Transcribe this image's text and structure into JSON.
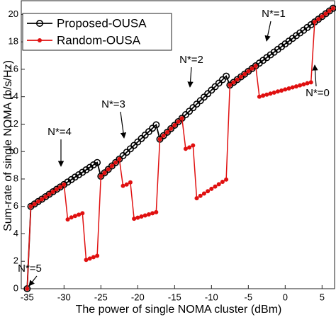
{
  "chart_data": {
    "type": "line",
    "x_label": "The power of single NOMA cluster (dBm)",
    "y_label": "Sum-rate of single NOMA (b/s/Hz)",
    "x": [
      -35,
      -34.5,
      -34,
      -33.5,
      -33,
      -32.5,
      -32,
      -31.5,
      -31,
      -30.5,
      -30,
      -29.5,
      -29,
      -28.5,
      -28,
      -27.5,
      -27,
      -26.5,
      -26,
      -25.5,
      -25,
      -24.5,
      -24,
      -23.5,
      -23,
      -22.5,
      -22,
      -21.5,
      -21,
      -20.5,
      -20,
      -19.5,
      -19,
      -18.5,
      -18,
      -17.5,
      -17,
      -16.5,
      -16,
      -15.5,
      -15,
      -14.5,
      -14,
      -13.5,
      -13,
      -12.5,
      -12,
      -11.5,
      -11,
      -10.5,
      -10,
      -9.5,
      -9,
      -8.5,
      -8,
      -7.5,
      -7,
      -6.5,
      -6,
      -5.5,
      -5,
      -4.5,
      -4,
      -3.5,
      -3,
      -2.5,
      -2,
      -1.5,
      -1,
      -0.5,
      0,
      0.5,
      1,
      1.5,
      2,
      2.5,
      3,
      3.5,
      4,
      4.5,
      5,
      5.5,
      6,
      6.5
    ],
    "series": [
      {
        "name": "Proposed-OUSA",
        "color": "#000000",
        "marker": "open-circle",
        "values": [
          0,
          6.0,
          6.18,
          6.36,
          6.53,
          6.71,
          6.89,
          7.07,
          7.25,
          7.42,
          7.6,
          7.78,
          7.96,
          8.14,
          8.31,
          8.49,
          8.67,
          8.85,
          9.03,
          9.2,
          8.2,
          8.45,
          8.7,
          8.95,
          9.2,
          9.45,
          9.7,
          9.95,
          10.2,
          10.45,
          10.7,
          10.95,
          11.2,
          11.45,
          11.7,
          11.95,
          10.9,
          11.16,
          11.41,
          11.67,
          11.92,
          12.18,
          12.43,
          12.69,
          12.94,
          13.2,
          13.46,
          13.71,
          13.97,
          14.22,
          14.48,
          14.73,
          14.99,
          15.24,
          15.5,
          14.85,
          15.05,
          15.25,
          15.45,
          15.65,
          15.85,
          16.05,
          16.25,
          16.45,
          16.65,
          16.85,
          17.05,
          17.25,
          17.45,
          17.65,
          17.85,
          18.05,
          18.25,
          18.45,
          18.65,
          18.85,
          19.05,
          19.25,
          19.45,
          19.65,
          19.85,
          20.05,
          20.25,
          20.45
        ]
      },
      {
        "name": "Random-OUSA",
        "color": "#e01010",
        "marker": "filled-dot",
        "values": [
          0,
          6.0,
          6.18,
          6.36,
          6.53,
          6.71,
          6.89,
          7.07,
          7.25,
          7.42,
          7.6,
          5.05,
          5.2,
          5.3,
          5.4,
          5.5,
          2.1,
          2.2,
          2.3,
          2.4,
          8.2,
          8.45,
          8.7,
          8.95,
          9.2,
          9.45,
          7.5,
          7.6,
          7.75,
          5.1,
          5.18,
          5.26,
          5.34,
          5.42,
          5.5,
          5.58,
          10.9,
          11.16,
          11.41,
          11.67,
          11.92,
          12.18,
          12.43,
          10.2,
          10.3,
          10.45,
          6.6,
          6.77,
          6.94,
          7.11,
          7.28,
          7.45,
          7.62,
          7.79,
          7.96,
          14.85,
          15.05,
          15.25,
          15.45,
          15.65,
          15.85,
          16.05,
          16.25,
          14.0,
          14.08,
          14.15,
          14.23,
          14.3,
          14.38,
          14.45,
          14.53,
          14.6,
          14.68,
          14.75,
          14.83,
          14.9,
          14.98,
          15.05,
          19.45,
          19.65,
          19.85,
          20.05,
          20.25,
          20.45
        ]
      }
    ],
    "xlim": [
      -35.8,
      6.7
    ],
    "ylim": [
      0,
      21
    ],
    "xticks": [
      -35,
      -30,
      -25,
      -20,
      -15,
      -10,
      -5,
      0,
      5
    ],
    "yticks": [
      0,
      2,
      4,
      6,
      8,
      10,
      12,
      14,
      16,
      18,
      20
    ],
    "grid": false,
    "legend": "upper-left",
    "annotations": [
      "N*=5",
      "N*=4",
      "N*=3",
      "N*=2",
      "N*=1",
      "N*=0"
    ]
  }
}
